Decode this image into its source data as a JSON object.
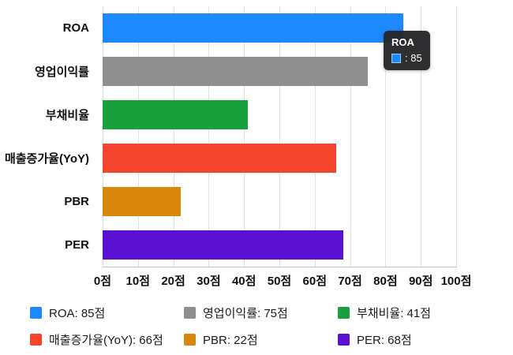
{
  "chart_data": {
    "type": "bar",
    "orientation": "horizontal",
    "categories": [
      "ROA",
      "영업이익률",
      "부채비율",
      "매출증가율(YoY)",
      "PBR",
      "PER"
    ],
    "values": [
      85,
      75,
      41,
      66,
      22,
      68
    ],
    "unit": "점",
    "colors": [
      "#1e88ff",
      "#8f8f8f",
      "#18a03c",
      "#f4452c",
      "#d9860d",
      "#5a10d0"
    ],
    "xlim": [
      0,
      100
    ],
    "x_ticks": [
      "0점",
      "10점",
      "20점",
      "30점",
      "40점",
      "50점",
      "60점",
      "70점",
      "80점",
      "90점",
      "100점"
    ],
    "grid": true,
    "legend_position": "bottom",
    "title": ""
  },
  "tooltip": {
    "title": "ROA",
    "value_text": ": 85",
    "series_color": "#1e88ff"
  },
  "legend": {
    "items": [
      {
        "label": "ROA: 85점",
        "color": "#1e88ff"
      },
      {
        "label": "영업이익률: 75점",
        "color": "#8f8f8f"
      },
      {
        "label": "부채비율: 41점",
        "color": "#18a03c"
      },
      {
        "label": "매출증가율(YoY): 66점",
        "color": "#f4452c"
      },
      {
        "label": "PBR: 22점",
        "color": "#d9860d"
      },
      {
        "label": "PER: 68점",
        "color": "#5a10d0"
      }
    ]
  }
}
